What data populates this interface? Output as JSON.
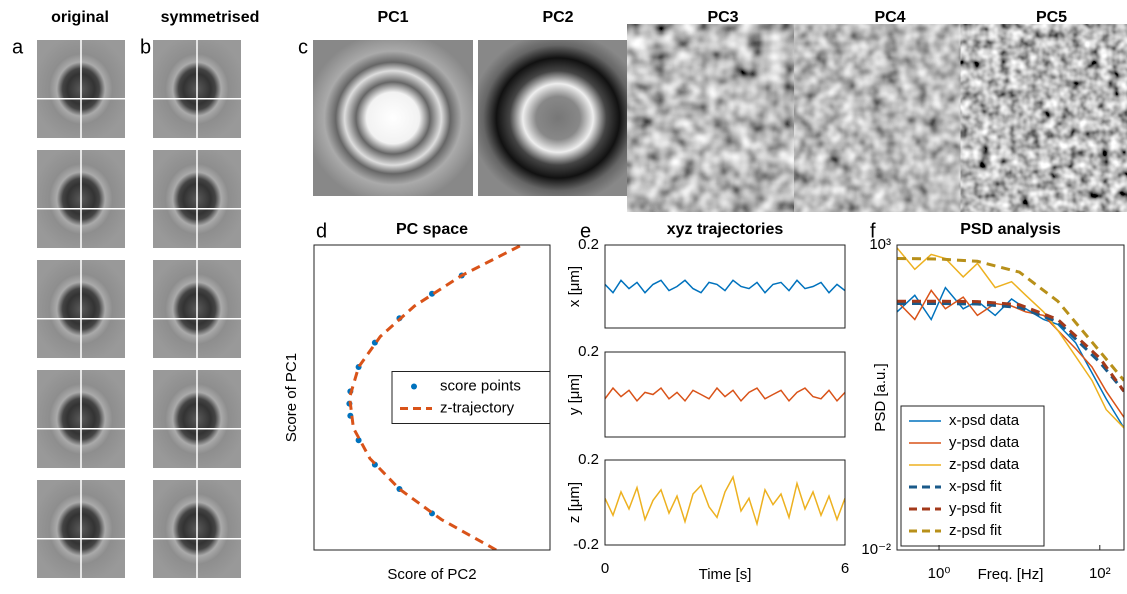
{
  "panels": {
    "labels": [
      "a",
      "b",
      "c",
      "d",
      "e",
      "f"
    ],
    "column_titles": [
      "original",
      "symmetrised"
    ],
    "pc_titles": [
      "PC1",
      "PC2",
      "PC3",
      "PC4",
      "PC5"
    ]
  },
  "chart_data": [
    {
      "type": "scatter",
      "title": "PC space",
      "xlabel": "Score of PC2",
      "ylabel": "Score of PC1",
      "xlim": [
        0,
        1
      ],
      "ylim": [
        0,
        1
      ],
      "legend": "center right",
      "series": [
        {
          "name": "score points",
          "color": "#0072bd",
          "kind": "points",
          "x": [
            0.5,
            0.362,
            0.258,
            0.189,
            0.154,
            0.15,
            0.154,
            0.189,
            0.258,
            0.362,
            0.5,
            0.626
          ],
          "values": [
            0.12,
            0.2,
            0.28,
            0.36,
            0.44,
            0.48,
            0.52,
            0.6,
            0.68,
            0.76,
            0.84,
            0.9
          ]
        },
        {
          "name": "z-trajectory",
          "color": "#d95319",
          "kind": "dashed",
          "x": [
            0.772,
            0.54,
            0.362,
            0.237,
            0.167,
            0.151,
            0.189,
            0.281,
            0.426,
            0.626,
            0.88
          ],
          "values": [
            0,
            0.1,
            0.2,
            0.3,
            0.4,
            0.5,
            0.6,
            0.7,
            0.8,
            0.9,
            1
          ]
        }
      ]
    },
    {
      "type": "line",
      "title": "xyz trajectories",
      "ylabel": "x [μm]",
      "color": "#0072bd",
      "xlim": [
        0,
        6
      ],
      "ylim": [
        -0.2,
        0.2
      ],
      "yticks": [
        0.2
      ],
      "x": [
        0,
        0.2,
        0.4,
        0.6,
        0.8,
        1,
        1.2,
        1.4,
        1.6,
        1.8,
        2,
        2.2,
        2.4,
        2.6,
        2.8,
        3,
        3.2,
        3.4,
        3.6,
        3.8,
        4,
        4.2,
        4.4,
        4.6,
        4.8,
        5,
        5.2,
        5.4,
        5.6,
        5.8,
        6
      ],
      "values": [
        0.01,
        -0.03,
        0.03,
        -0.01,
        0.02,
        -0.03,
        0.01,
        0.03,
        -0.02,
        0.0,
        0.03,
        -0.01,
        -0.03,
        0.02,
        0.01,
        -0.02,
        0.03,
        0.0,
        -0.01,
        0.02,
        -0.03,
        0.01,
        0.02,
        -0.02,
        0.03,
        -0.01,
        0.0,
        0.02,
        -0.03,
        0.01,
        -0.02
      ]
    },
    {
      "type": "line",
      "ylabel": "y [μm]",
      "color": "#d95319",
      "xlim": [
        0,
        6
      ],
      "ylim": [
        -0.2,
        0.2
      ],
      "yticks": [
        0.2
      ],
      "x": [
        0,
        0.2,
        0.4,
        0.6,
        0.8,
        1,
        1.2,
        1.4,
        1.6,
        1.8,
        2,
        2.2,
        2.4,
        2.6,
        2.8,
        3,
        3.2,
        3.4,
        3.6,
        3.8,
        4,
        4.2,
        4.4,
        4.6,
        4.8,
        5,
        5.2,
        5.4,
        5.6,
        5.8,
        6
      ],
      "values": [
        -0.02,
        0.03,
        -0.01,
        0.02,
        -0.03,
        0.01,
        0.0,
        0.03,
        -0.02,
        0.01,
        -0.03,
        0.02,
        0.0,
        -0.02,
        0.03,
        -0.01,
        0.02,
        -0.03,
        0.01,
        0.03,
        -0.02,
        0.0,
        0.02,
        -0.03,
        0.01,
        0.03,
        -0.01,
        -0.02,
        0.02,
        -0.03,
        0.01
      ]
    },
    {
      "type": "line",
      "ylabel": "z [μm]",
      "xlabel": "Time [s]",
      "color": "#edb120",
      "xlim": [
        0,
        6
      ],
      "ylim": [
        -0.2,
        0.2
      ],
      "yticks": [
        0.2,
        -0.2
      ],
      "xticks": [
        0,
        6
      ],
      "x": [
        0,
        0.2,
        0.4,
        0.6,
        0.8,
        1,
        1.2,
        1.4,
        1.6,
        1.8,
        2,
        2.2,
        2.4,
        2.6,
        2.8,
        3,
        3.2,
        3.4,
        3.6,
        3.8,
        4,
        4.2,
        4.4,
        4.6,
        4.8,
        5,
        5.2,
        5.4,
        5.6,
        5.8,
        6
      ],
      "values": [
        0.02,
        -0.06,
        0.05,
        -0.03,
        0.07,
        -0.08,
        0.01,
        0.06,
        -0.05,
        0.03,
        -0.09,
        0.04,
        0.08,
        -0.02,
        -0.07,
        0.05,
        0.12,
        -0.04,
        0.02,
        -0.1,
        0.06,
        -0.01,
        0.04,
        -0.07,
        0.09,
        -0.03,
        0.05,
        -0.06,
        0.03,
        -0.08,
        0.02
      ]
    },
    {
      "type": "line",
      "title": "PSD analysis",
      "xlabel": "Freq. [Hz]",
      "ylabel": "PSD [a.u.]",
      "xscale": "log",
      "yscale": "log",
      "xlim": [
        0.3,
        200
      ],
      "ylim": [
        0.01,
        1000
      ],
      "legend": "lower left",
      "xticks": [
        {
          "value": 1,
          "label": "10⁰"
        },
        {
          "value": 100,
          "label": "10²"
        }
      ],
      "yticks": [
        {
          "value": 1000,
          "label": "10³"
        },
        {
          "value": 0.01,
          "label": "10⁻²"
        }
      ],
      "series": [
        {
          "name": "x-psd data",
          "color": "#0072bd",
          "kind": "solid",
          "x": [
            0.3,
            0.5,
            0.8,
            1.2,
            2,
            3,
            5,
            8,
            12,
            20,
            30,
            50,
            80,
            120,
            200
          ],
          "values": [
            80,
            150,
            60,
            200,
            90,
            120,
            70,
            130,
            90,
            60,
            50,
            25,
            8,
            3,
            1
          ]
        },
        {
          "name": "y-psd data",
          "color": "#d95319",
          "kind": "solid",
          "x": [
            0.3,
            0.5,
            0.8,
            1.2,
            2,
            3,
            5,
            8,
            12,
            20,
            30,
            50,
            80,
            120,
            200
          ],
          "values": [
            120,
            60,
            180,
            90,
            140,
            70,
            110,
            100,
            80,
            70,
            40,
            20,
            10,
            4,
            1.5
          ]
        },
        {
          "name": "z-psd data",
          "color": "#edb120",
          "kind": "solid",
          "x": [
            0.3,
            0.5,
            0.8,
            1.2,
            2,
            3,
            5,
            8,
            12,
            20,
            30,
            50,
            80,
            120,
            200
          ],
          "values": [
            900,
            400,
            700,
            600,
            300,
            500,
            200,
            250,
            150,
            80,
            40,
            15,
            6,
            2,
            1
          ]
        },
        {
          "name": "x-psd fit",
          "color": "#1a5a8a",
          "kind": "dashed",
          "x": [
            0.3,
            1,
            3,
            10,
            30,
            100,
            200
          ],
          "values": [
            110,
            110,
            108,
            95,
            55,
            12,
            4
          ]
        },
        {
          "name": "y-psd fit",
          "color": "#a3391a",
          "kind": "dashed",
          "x": [
            0.3,
            1,
            3,
            10,
            30,
            100,
            200
          ],
          "values": [
            120,
            120,
            118,
            105,
            60,
            14,
            4
          ]
        },
        {
          "name": "z-psd fit",
          "color": "#b8901a",
          "kind": "dashed",
          "x": [
            0.3,
            1,
            3,
            10,
            30,
            100,
            200
          ],
          "values": [
            600,
            590,
            540,
            360,
            120,
            18,
            6
          ]
        }
      ]
    }
  ]
}
